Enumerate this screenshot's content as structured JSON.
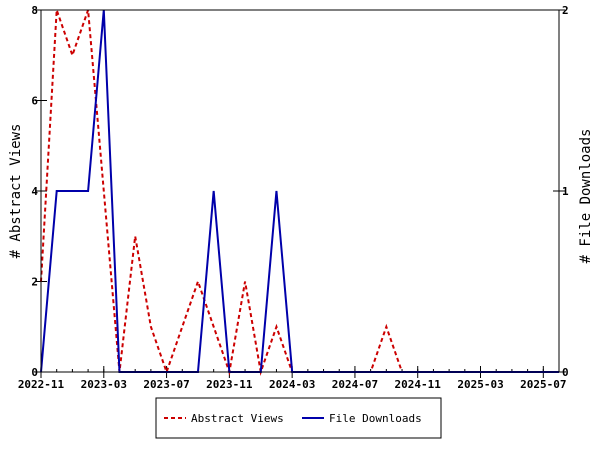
{
  "chart_data": {
    "type": "line",
    "ylabel_left": "# Abstract Views",
    "ylabel_right": "# File Downloads",
    "x_ticks": [
      "2022-11",
      "2023-03",
      "2023-07",
      "2023-11",
      "2024-03",
      "2024-07",
      "2024-11",
      "2025-03",
      "2025-07"
    ],
    "left_ylim": [
      0,
      8
    ],
    "left_yticks": [
      "0",
      "2",
      "4",
      "6",
      "8"
    ],
    "right_ylim": [
      0,
      2
    ],
    "right_yticks": [
      "0",
      "1",
      "2"
    ],
    "x": [
      "2022-11",
      "2022-12",
      "2023-01",
      "2023-02",
      "2023-03",
      "2023-04",
      "2023-05",
      "2023-06",
      "2023-07",
      "2023-08",
      "2023-09",
      "2023-10",
      "2023-11",
      "2023-12",
      "2024-01",
      "2024-02",
      "2024-03",
      "2024-04",
      "2024-05",
      "2024-06",
      "2024-07",
      "2024-08",
      "2024-09",
      "2024-10",
      "2024-11",
      "2024-12",
      "2025-01",
      "2025-02",
      "2025-03",
      "2025-04",
      "2025-05",
      "2025-06",
      "2025-07",
      "2025-08"
    ],
    "series": [
      {
        "name": "Abstract Views",
        "axis": "left",
        "color": "#cc0000",
        "dash": true,
        "values": [
          2,
          8,
          7,
          8,
          4,
          0,
          3,
          1,
          0,
          1,
          2,
          1,
          0,
          2,
          0,
          1,
          0,
          0,
          0,
          0,
          0,
          0,
          1,
          0,
          0,
          0,
          0,
          0,
          0,
          0,
          0,
          0,
          0,
          0
        ]
      },
      {
        "name": "File Downloads",
        "axis": "right",
        "color": "#0000aa",
        "dash": false,
        "values": [
          0,
          1,
          1,
          1,
          2,
          0,
          0,
          0,
          0,
          0,
          0,
          1,
          0,
          0,
          0,
          1,
          0,
          0,
          0,
          0,
          0,
          0,
          0,
          0,
          0,
          0,
          0,
          0,
          0,
          0,
          0,
          0,
          0,
          0
        ]
      }
    ],
    "legend_position": "bottom-center",
    "grid": false
  }
}
